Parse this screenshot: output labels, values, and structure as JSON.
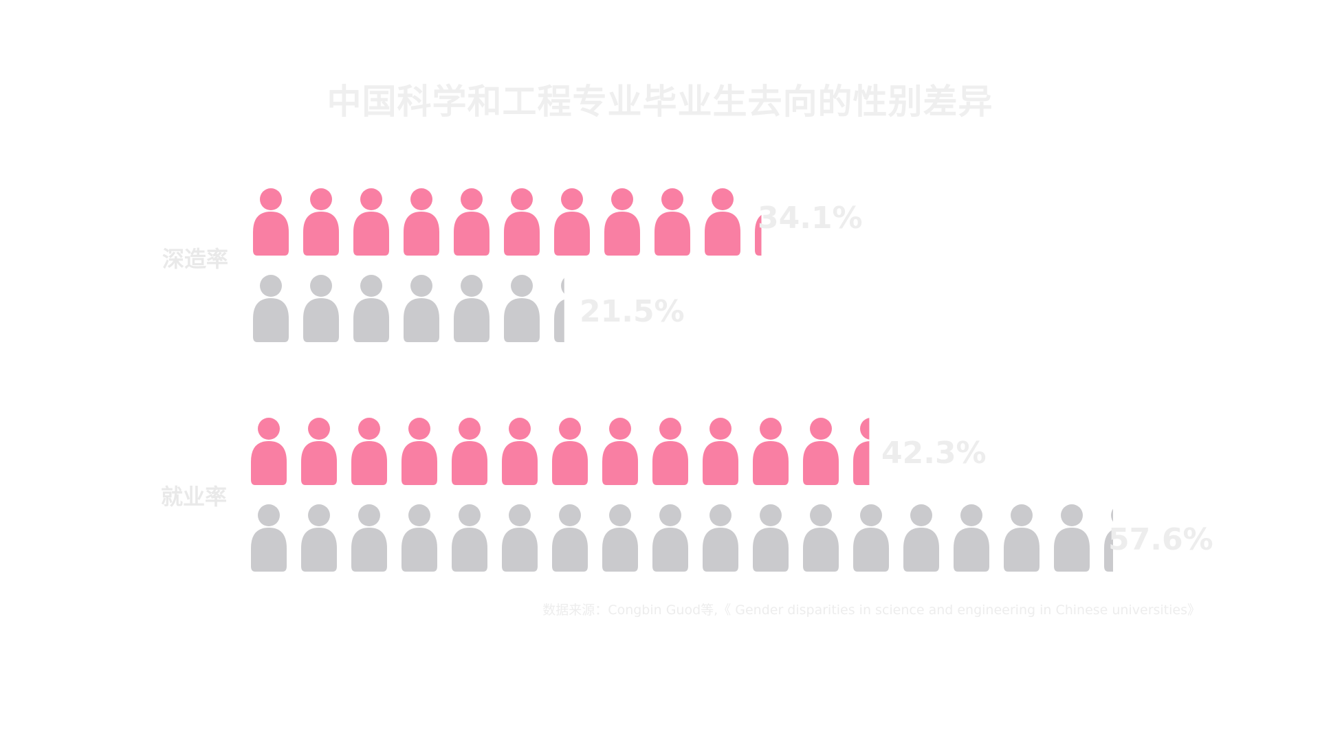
{
  "chart_data": {
    "type": "pictogram-bar",
    "title": "中国科学和工程专业毕业生去向的性别差异",
    "source": "数据来源：Congbin Guod等,《 Gender disparities in science and engineering in Chinese universities》",
    "colors": {
      "female": "#f97fa3",
      "male": "#cacacd",
      "text": "#ededed"
    },
    "icon": "person-icon",
    "groups": [
      {
        "label": "深造率",
        "rows": [
          {
            "series": "female",
            "value": 34.1,
            "value_label": "34.1%"
          },
          {
            "series": "male",
            "value": 21.5,
            "value_label": "21.5%"
          }
        ]
      },
      {
        "label": "就业率",
        "rows": [
          {
            "series": "female",
            "value": 42.3,
            "value_label": "42.3%"
          },
          {
            "series": "male",
            "value": 57.6,
            "value_label": "57.6%"
          }
        ]
      }
    ]
  }
}
